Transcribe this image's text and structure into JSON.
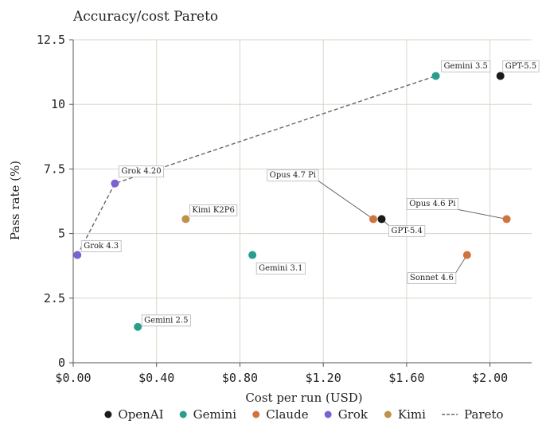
{
  "chart_data": {
    "type": "scatter",
    "title": "Accuracy/cost Pareto",
    "xlabel": "Cost per run (USD)",
    "ylabel": "Pass rate (%)",
    "xlim": [
      0,
      2.2
    ],
    "ylim": [
      0,
      12.5
    ],
    "xticks": [
      0,
      0.4,
      0.8,
      1.2,
      1.6,
      2.0
    ],
    "xtick_labels": [
      "$0.00",
      "$0.40",
      "$0.80",
      "$1.20",
      "$1.60",
      "$2.00"
    ],
    "yticks": [
      0,
      2.5,
      5,
      7.5,
      10,
      12.5
    ],
    "ytick_labels": [
      "0",
      "2.5",
      "5",
      "7.5",
      "10",
      "12.5"
    ],
    "grid": true,
    "legend_position": "bottom",
    "colors": {
      "OpenAI": "#1a1a1a",
      "Gemini": "#2a9d8f",
      "Claude": "#d2733f",
      "Grok": "#7b61d1",
      "Kimi": "#c0914a",
      "Pareto": "#666666"
    },
    "points": [
      {
        "label": "GPT-5.5",
        "provider": "OpenAI",
        "x": 2.05,
        "y": 11.1
      },
      {
        "label": "GPT-5.4",
        "provider": "OpenAI",
        "x": 1.48,
        "y": 5.56
      },
      {
        "label": "Gemini 3.5",
        "provider": "Gemini",
        "x": 1.74,
        "y": 11.1
      },
      {
        "label": "Gemini 3.1",
        "provider": "Gemini",
        "x": 0.86,
        "y": 4.17
      },
      {
        "label": "Gemini 2.5",
        "provider": "Gemini",
        "x": 0.31,
        "y": 1.39
      },
      {
        "label": "Opus 4.7 Pi",
        "provider": "Claude",
        "x": 1.44,
        "y": 5.56
      },
      {
        "label": "Opus 4.6 Pi",
        "provider": "Claude",
        "x": 2.08,
        "y": 5.56
      },
      {
        "label": "Sonnet 4.6",
        "provider": "Claude",
        "x": 1.89,
        "y": 4.17
      },
      {
        "label": "Grok 4.20",
        "provider": "Grok",
        "x": 0.2,
        "y": 6.94
      },
      {
        "label": "Grok 4.3",
        "provider": "Grok",
        "x": 0.02,
        "y": 4.17
      },
      {
        "label": "Kimi K2P6",
        "provider": "Kimi",
        "x": 0.54,
        "y": 5.56
      }
    ],
    "pareto": [
      {
        "x": 0.02,
        "y": 4.17
      },
      {
        "x": 0.2,
        "y": 6.94
      },
      {
        "x": 1.74,
        "y": 11.1
      }
    ],
    "legend": [
      "OpenAI",
      "Gemini",
      "Claude",
      "Grok",
      "Kimi",
      "Pareto"
    ]
  }
}
